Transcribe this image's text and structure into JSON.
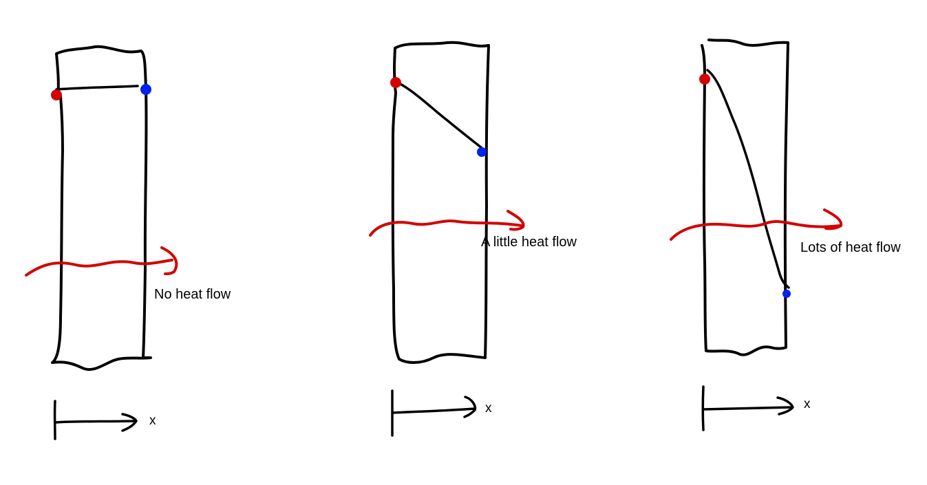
{
  "colors": {
    "ink": "#000000",
    "hot": "#d40000",
    "cold": "#0022ee",
    "heat_arrow": "#d40000",
    "background": "#ffffff"
  },
  "panels": [
    {
      "label": "No heat flow",
      "axis_label": "x",
      "temperature_profile": "flat"
    },
    {
      "label": "A little heat flow",
      "axis_label": "x",
      "temperature_profile": "shallow-slope"
    },
    {
      "label": "Lots of heat flow",
      "axis_label": "x",
      "temperature_profile": "steep-slope"
    }
  ]
}
